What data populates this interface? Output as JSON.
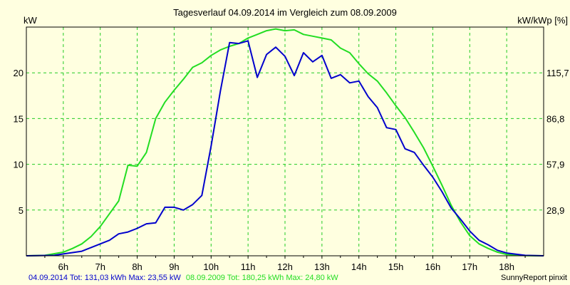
{
  "chart_data": {
    "type": "line",
    "title": "Tagesverlauf 04.09.2014 im Vergleich zum 08.09.2009",
    "ylabel": "kW",
    "y2label": "kW/kWp [%]",
    "ylim": [
      0,
      25
    ],
    "yticks": [
      5,
      10,
      15,
      20
    ],
    "y2ticks": [
      {
        "value": 5,
        "label": "28,9"
      },
      {
        "value": 10,
        "label": "57,9"
      },
      {
        "value": 15,
        "label": "86,8"
      },
      {
        "value": 20,
        "label": "115,7"
      }
    ],
    "xlim": [
      5.0,
      19.0
    ],
    "xticks": [
      {
        "value": 6,
        "label": "6h"
      },
      {
        "value": 7,
        "label": "7h"
      },
      {
        "value": 8,
        "label": "8h"
      },
      {
        "value": 9,
        "label": "9h"
      },
      {
        "value": 10,
        "label": "10h"
      },
      {
        "value": 11,
        "label": "11h"
      },
      {
        "value": 12,
        "label": "12h"
      },
      {
        "value": 13,
        "label": "13h"
      },
      {
        "value": 14,
        "label": "14h"
      },
      {
        "value": 15,
        "label": "15h"
      },
      {
        "value": 16,
        "label": "16h"
      },
      {
        "value": 17,
        "label": "17h"
      },
      {
        "value": 18,
        "label": "18h"
      }
    ],
    "grid": true,
    "colors": {
      "background": "#FFFFE0",
      "plot_background": "#FFFFE0",
      "grid": "#22CC22",
      "axis": "#000000"
    },
    "series": [
      {
        "color": "#0000CC",
        "points": [
          [
            5.0,
            0
          ],
          [
            5.75,
            0.05
          ],
          [
            6.0,
            0.2
          ],
          [
            6.5,
            0.5
          ],
          [
            6.75,
            0.9
          ],
          [
            7.0,
            1.3
          ],
          [
            7.25,
            1.7
          ],
          [
            7.5,
            2.4
          ],
          [
            7.75,
            2.6
          ],
          [
            8.0,
            3.0
          ],
          [
            8.25,
            3.5
          ],
          [
            8.5,
            3.6
          ],
          [
            8.75,
            5.3
          ],
          [
            9.0,
            5.3
          ],
          [
            9.25,
            5.0
          ],
          [
            9.5,
            5.6
          ],
          [
            9.75,
            6.6
          ],
          [
            10.0,
            12.0
          ],
          [
            10.25,
            18.0
          ],
          [
            10.5,
            23.3
          ],
          [
            10.75,
            23.2
          ],
          [
            11.0,
            23.5
          ],
          [
            11.25,
            19.5
          ],
          [
            11.5,
            22.0
          ],
          [
            11.75,
            22.8
          ],
          [
            12.0,
            21.8
          ],
          [
            12.25,
            19.7
          ],
          [
            12.5,
            22.2
          ],
          [
            12.75,
            21.2
          ],
          [
            13.0,
            21.9
          ],
          [
            13.25,
            19.4
          ],
          [
            13.5,
            19.8
          ],
          [
            13.75,
            18.9
          ],
          [
            14.0,
            19.1
          ],
          [
            14.25,
            17.4
          ],
          [
            14.5,
            16.2
          ],
          [
            14.75,
            14.0
          ],
          [
            15.0,
            13.8
          ],
          [
            15.25,
            11.7
          ],
          [
            15.5,
            11.3
          ],
          [
            15.75,
            9.9
          ],
          [
            16.0,
            8.6
          ],
          [
            16.25,
            7.0
          ],
          [
            16.5,
            5.2
          ],
          [
            16.75,
            4.0
          ],
          [
            17.0,
            2.7
          ],
          [
            17.25,
            1.7
          ],
          [
            17.5,
            1.2
          ],
          [
            17.75,
            0.6
          ],
          [
            18.0,
            0.3
          ],
          [
            18.5,
            0.05
          ],
          [
            19.0,
            0
          ]
        ]
      },
      {
        "color": "#22DD22",
        "points": [
          [
            5.0,
            0
          ],
          [
            5.5,
            0.05
          ],
          [
            6.0,
            0.4
          ],
          [
            6.25,
            0.8
          ],
          [
            6.5,
            1.3
          ],
          [
            6.75,
            2.1
          ],
          [
            7.0,
            3.2
          ],
          [
            7.25,
            4.6
          ],
          [
            7.5,
            6.0
          ],
          [
            7.75,
            9.9
          ],
          [
            8.0,
            9.8
          ],
          [
            8.25,
            11.3
          ],
          [
            8.5,
            15.0
          ],
          [
            8.75,
            16.8
          ],
          [
            9.0,
            18.1
          ],
          [
            9.25,
            19.3
          ],
          [
            9.5,
            20.6
          ],
          [
            9.75,
            21.1
          ],
          [
            10.0,
            21.9
          ],
          [
            10.25,
            22.5
          ],
          [
            10.5,
            22.9
          ],
          [
            10.75,
            23.2
          ],
          [
            11.0,
            23.8
          ],
          [
            11.25,
            24.2
          ],
          [
            11.5,
            24.6
          ],
          [
            11.75,
            24.8
          ],
          [
            12.0,
            24.6
          ],
          [
            12.25,
            24.7
          ],
          [
            12.5,
            24.2
          ],
          [
            12.75,
            24.0
          ],
          [
            13.0,
            23.8
          ],
          [
            13.25,
            23.6
          ],
          [
            13.5,
            22.7
          ],
          [
            13.75,
            22.2
          ],
          [
            14.0,
            21.0
          ],
          [
            14.25,
            19.9
          ],
          [
            14.5,
            19.1
          ],
          [
            14.75,
            17.8
          ],
          [
            15.0,
            16.4
          ],
          [
            15.25,
            15.1
          ],
          [
            15.5,
            13.5
          ],
          [
            15.75,
            11.8
          ],
          [
            16.0,
            9.8
          ],
          [
            16.25,
            7.7
          ],
          [
            16.5,
            5.5
          ],
          [
            16.75,
            3.7
          ],
          [
            17.0,
            2.2
          ],
          [
            17.25,
            1.3
          ],
          [
            17.5,
            0.8
          ],
          [
            17.75,
            0.4
          ],
          [
            18.0,
            0.15
          ],
          [
            18.5,
            0.02
          ],
          [
            19.0,
            0
          ]
        ]
      }
    ]
  },
  "footer": {
    "series1_text": "04.09.2014 Tot: 131,03 kWh Max: 23,55 kW",
    "series2_text": "08.09.2009 Tot: 180,25 kWh Max: 24,80 kW",
    "credit": "SunnyReport pinxit"
  }
}
